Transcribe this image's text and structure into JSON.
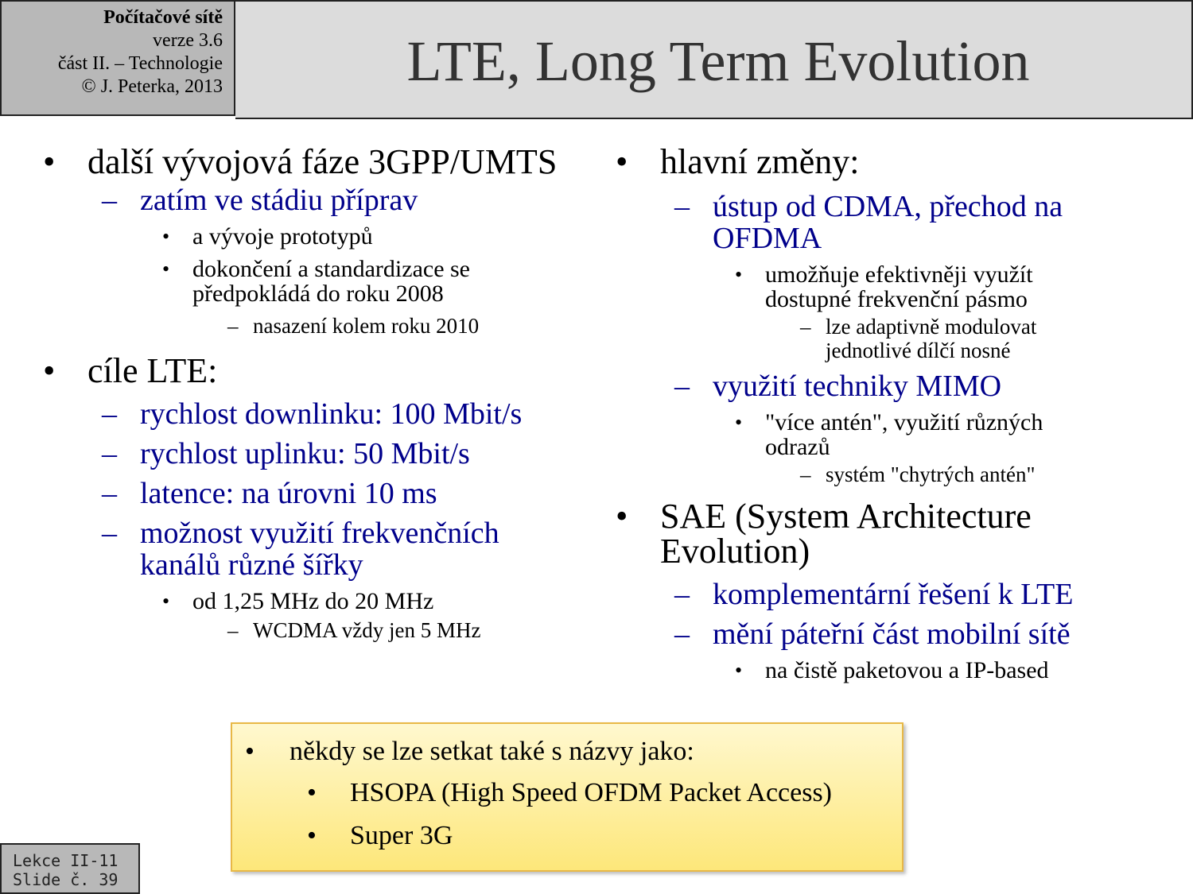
{
  "header": {
    "course": "Počítačové sítě",
    "version": "verze 3.6",
    "part": "část  II. – Technologie",
    "copyright": "© J. Peterka, 2013",
    "title": "LTE, Long Term Evolution"
  },
  "left": {
    "b1": "další vývojová fáze 3GPP/UMTS",
    "b1_s1": "zatím ve stádiu příprav",
    "b1_s1_a": "a vývoje prototypů",
    "b1_s1_b": "dokončení a standardizace se předpokládá do roku 2008",
    "b1_s1_b_1": "nasazení kolem roku 2010",
    "b2": "cíle LTE:",
    "b2_s1": "rychlost downlinku: 100 Mbit/s",
    "b2_s2": "rychlost uplinku: 50 Mbit/s",
    "b2_s3": "latence: na úrovni 10 ms",
    "b2_s4": "možnost využití frekvenčních kanálů různé šířky",
    "b2_s4_a": "od 1,25 MHz do 20 MHz",
    "b2_s4_a_1": "WCDMA vždy jen 5 MHz"
  },
  "right": {
    "b1": "hlavní změny:",
    "b1_s1": "ústup od CDMA, přechod na OFDMA",
    "b1_s1_a": "umožňuje efektivněji využít dostupné frekvenční pásmo",
    "b1_s1_a_1": "lze adaptivně modulovat jednotlivé dílčí nosné",
    "b1_s2": "využití techniky MIMO",
    "b1_s2_a": "\"více antén\", využití různých odrazů",
    "b1_s2_a_1": "systém \"chytrých antén\"",
    "b2": "SAE (System Architecture Evolution)",
    "b2_s1": "komplementární řešení k LTE",
    "b2_s2": "mění páteřní část mobilní sítě",
    "b2_s2_a": "na čistě paketovou a IP-based"
  },
  "note": {
    "intro": "někdy se lze setkat také s názvy jako:",
    "item1": "HSOPA (High Speed OFDM Packet Access)",
    "item2": "Super 3G"
  },
  "slide_label": {
    "line1": "Lekce II-11",
    "line2": "Slide č. 39"
  }
}
